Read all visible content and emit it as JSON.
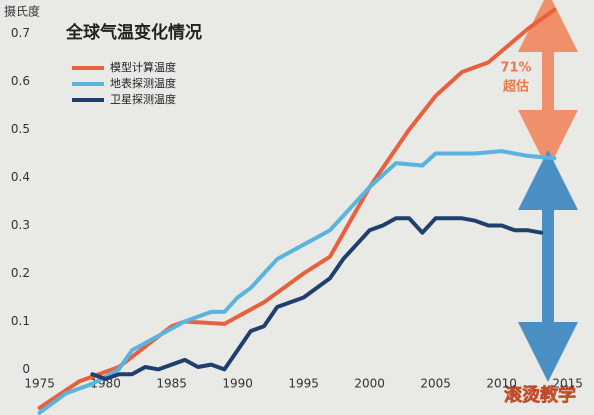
{
  "chart_data": {
    "type": "line",
    "title": "全球气温变化情况",
    "y_label": "摄氏度",
    "annotations": [
      "71%",
      "超估"
    ],
    "xlim": [
      1972,
      2017
    ],
    "xticks": [
      1975,
      1980,
      1985,
      1990,
      1995,
      2000,
      2005,
      2010,
      2015
    ],
    "ylim": [
      -0.095,
      0.77
    ],
    "yticks": [
      0,
      0.1,
      0.2,
      0.3,
      0.4,
      0.5,
      0.6,
      0.7
    ],
    "grid": false,
    "series": [
      {
        "name": "模型计算温度",
        "color": "#e8603c",
        "x": [
          1975,
          1978,
          1981,
          1985,
          1986,
          1989,
          1992,
          1995,
          1997,
          2000,
          2003,
          2005,
          2007,
          2009,
          2012,
          2014
        ],
        "values": [
          -0.08,
          -0.025,
          0.005,
          0.09,
          0.1,
          0.095,
          0.14,
          0.2,
          0.235,
          0.38,
          0.5,
          0.57,
          0.62,
          0.64,
          0.71,
          0.75
        ]
      },
      {
        "name": "地表探测温度",
        "color": "#5ab4e0",
        "x": [
          1975,
          1977,
          1979,
          1981,
          1982,
          1984,
          1986,
          1987,
          1988,
          1989,
          1990,
          1991,
          1993,
          1995,
          1997,
          1998,
          2000,
          2002,
          2004,
          2005,
          2008,
          2010,
          2012,
          2014
        ],
        "values": [
          -0.09,
          -0.05,
          -0.03,
          0.0,
          0.04,
          0.07,
          0.1,
          0.11,
          0.12,
          0.12,
          0.15,
          0.17,
          0.23,
          0.26,
          0.29,
          0.32,
          0.38,
          0.43,
          0.425,
          0.45,
          0.45,
          0.455,
          0.445,
          0.44
        ]
      },
      {
        "name": "卫星探测温度",
        "color": "#1f3f6e",
        "x": [
          1979,
          1980,
          1981,
          1982,
          1983,
          1984,
          1985,
          1986,
          1987,
          1988,
          1989,
          1990,
          1991,
          1992,
          1993,
          1994,
          1995,
          1996,
          1997,
          1998,
          1999,
          2000,
          2001,
          2002,
          2003,
          2004,
          2005,
          2007,
          2008,
          2009,
          2010,
          2011,
          2012,
          2013
        ],
        "values": [
          -0.01,
          -0.02,
          -0.01,
          -0.01,
          0.005,
          0.0,
          0.01,
          0.02,
          0.005,
          0.01,
          0.0,
          0.04,
          0.08,
          0.09,
          0.13,
          0.14,
          0.15,
          0.17,
          0.19,
          0.23,
          0.26,
          0.29,
          0.3,
          0.315,
          0.315,
          0.285,
          0.315,
          0.315,
          0.31,
          0.3,
          0.3,
          0.29,
          0.29,
          0.285
        ]
      }
    ]
  },
  "watermark": "滚烫教学"
}
